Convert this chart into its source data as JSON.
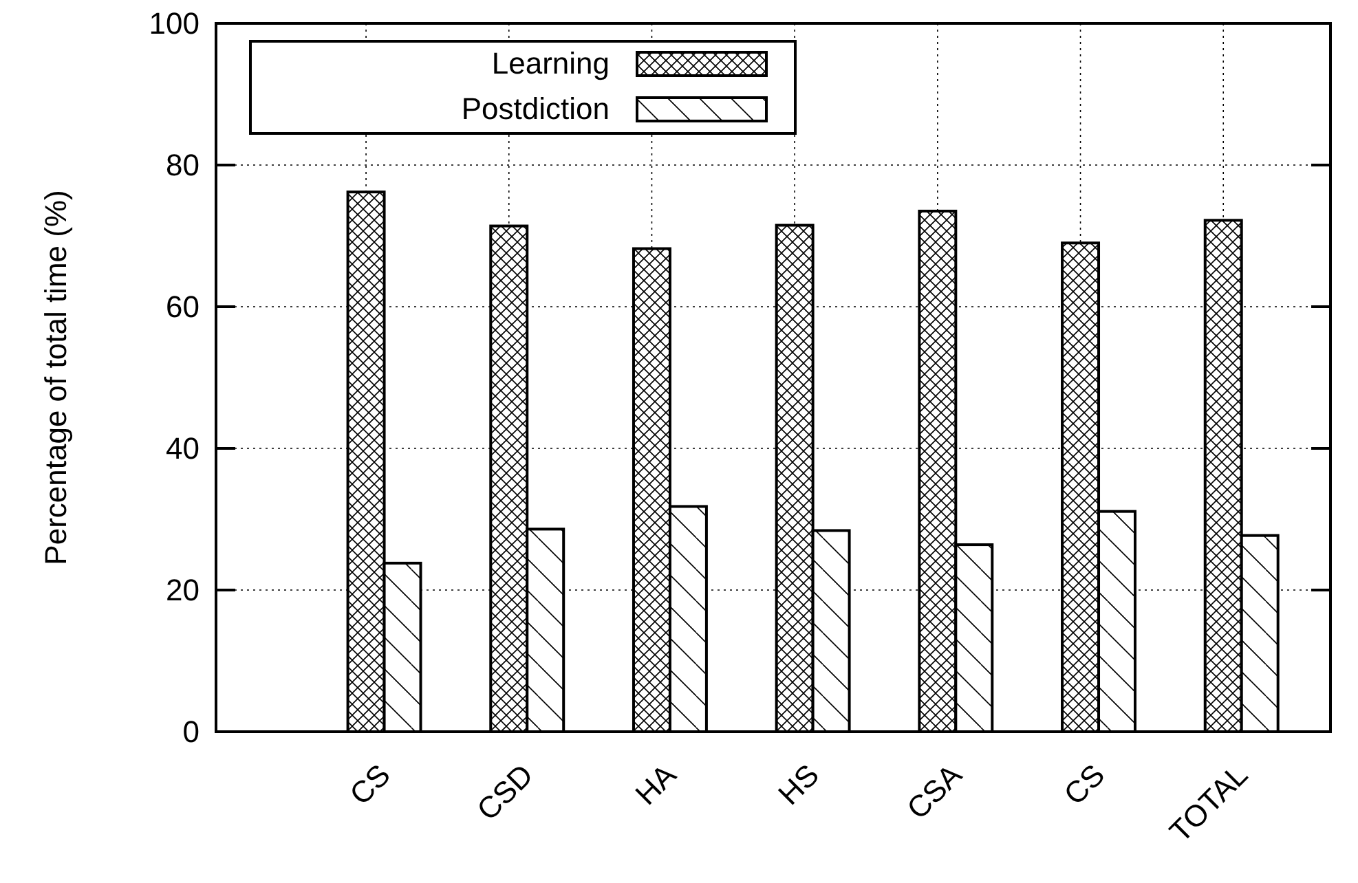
{
  "chart_data": {
    "type": "bar",
    "ylabel": "Percentage of total time (%)",
    "categories": [
      "CS",
      "CSD",
      "HA",
      "HS",
      "CSA",
      "CS",
      "TOTAL"
    ],
    "series": [
      {
        "name": "Learning",
        "color": "#000000",
        "values": [
          76.2,
          71.4,
          68.2,
          71.5,
          73.5,
          69.0,
          72.2
        ]
      },
      {
        "name": "Postdiction",
        "color": "#000000",
        "values": [
          23.8,
          28.6,
          31.8,
          28.4,
          26.4,
          31.1,
          27.7
        ]
      }
    ],
    "ylim": [
      0,
      100
    ],
    "yticks": [
      0,
      20,
      40,
      60,
      80,
      100
    ],
    "grid": true,
    "legend": "top left"
  }
}
